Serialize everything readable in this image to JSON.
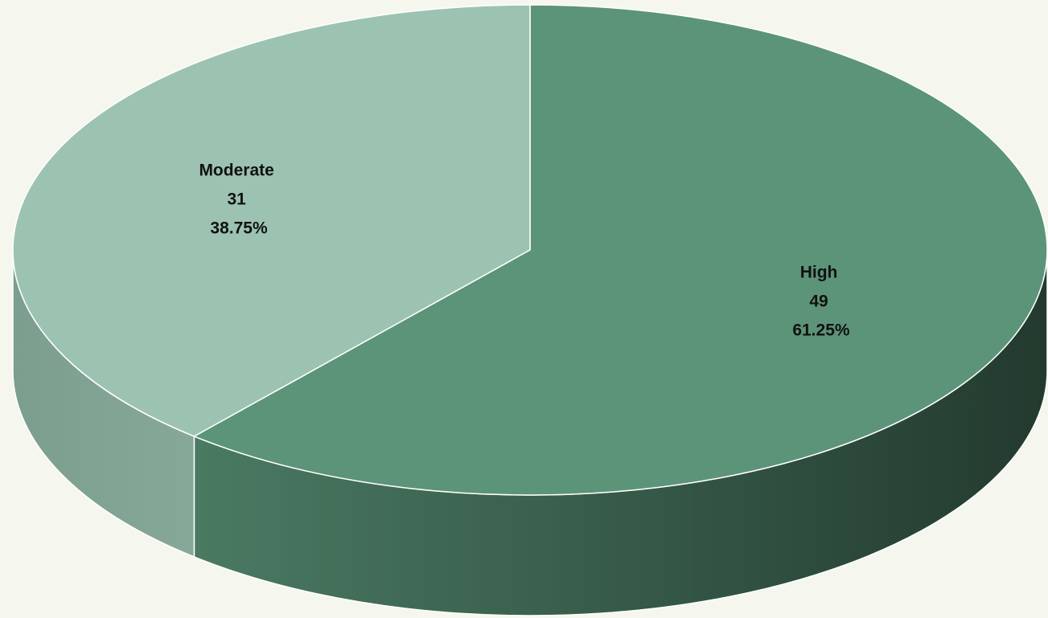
{
  "chart_data": {
    "type": "pie",
    "style": "3d",
    "start_angle_deg": 0,
    "direction": "clockwise",
    "slices": [
      {
        "label": "High",
        "value": 49,
        "percent": "61.25%",
        "color": "#5c9479",
        "side_light": "#4a7a63",
        "side_dark": "#233a2f"
      },
      {
        "label": "Moderate",
        "value": 31,
        "percent": "38.75%",
        "color": "#9cc3b1",
        "side_light": "#7c9e8f",
        "side_dark": "#86a898"
      }
    ],
    "legend": "none",
    "data_labels": "category, value, percent"
  }
}
